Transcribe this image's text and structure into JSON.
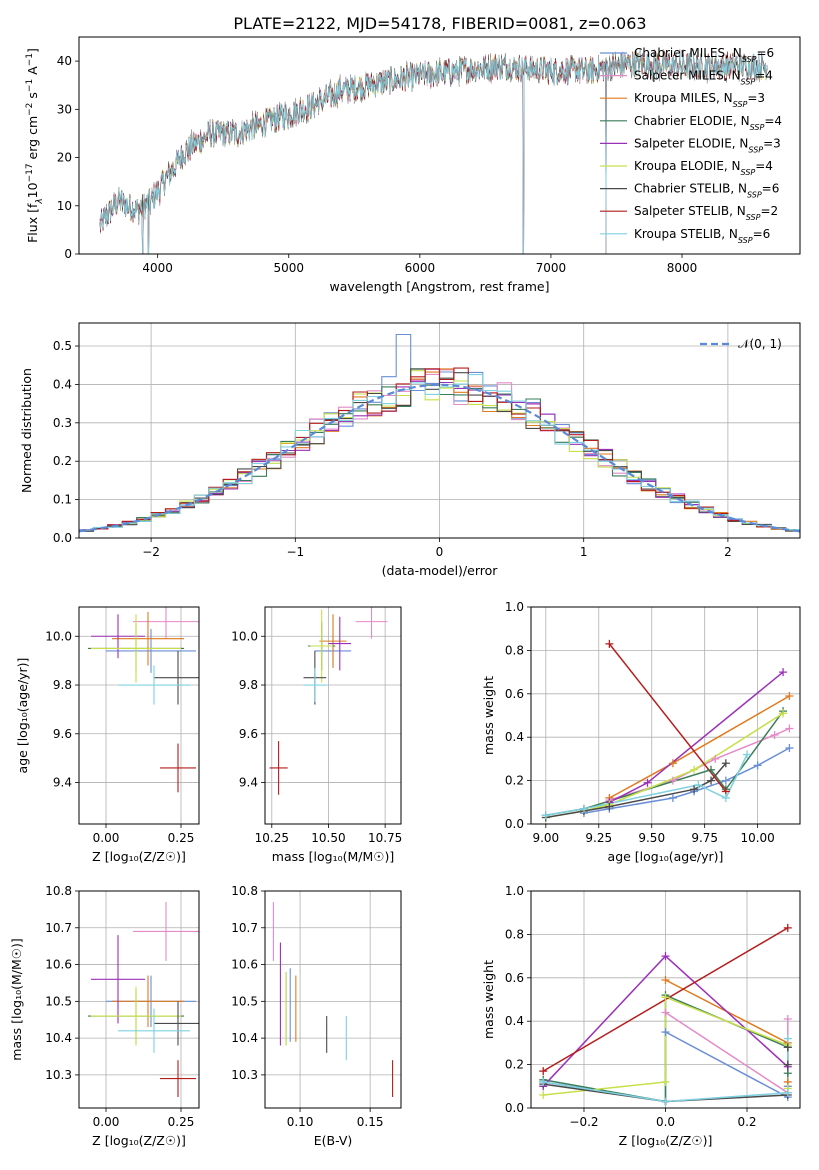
{
  "figure_title": "PLATE=2122, MJD=54178, FIBERID=0081, z=0.063",
  "colors": {
    "Chabrier MILES": "#6a8fd6",
    "Salpeter MILES": "#e48ac9",
    "Kroupa MILES": "#e07a1f",
    "Chabrier ELODIE": "#3a7d5a",
    "Salpeter ELODIE": "#9b30b8",
    "Kroupa ELODIE": "#c7e04a",
    "Chabrier STELIB": "#4a4a4a",
    "Salpeter STELIB": "#b51d1d",
    "Kroupa STELIB": "#7fd0e0"
  },
  "legend_spectrum": [
    {
      "key": "Chabrier MILES",
      "prefix": "Chabrier MILES, N",
      "n": "6"
    },
    {
      "key": "Salpeter MILES",
      "prefix": "Salpeter MILES, N",
      "n": "4"
    },
    {
      "key": "Kroupa MILES",
      "prefix": "Kroupa MILES, N",
      "n": "3"
    },
    {
      "key": "Chabrier ELODIE",
      "prefix": "Chabrier ELODIE, N",
      "n": "4"
    },
    {
      "key": "Salpeter ELODIE",
      "prefix": "Salpeter ELODIE, N",
      "n": "3"
    },
    {
      "key": "Kroupa ELODIE",
      "prefix": "Kroupa ELODIE, N",
      "n": "4"
    },
    {
      "key": "Chabrier STELIB",
      "prefix": "Chabrier STELIB, N",
      "n": "6"
    },
    {
      "key": "Salpeter STELIB",
      "prefix": "Salpeter STELIB, N",
      "n": "2"
    },
    {
      "key": "Kroupa STELIB",
      "prefix": "Kroupa STELIB, N",
      "n": "6"
    }
  ],
  "legend_sub": "SSP",
  "legend_normal": "𝒩(0, 1)",
  "chart_data": [
    {
      "id": "spectrum",
      "type": "line",
      "xlabel": "wavelength [Angstrom, rest frame]",
      "ylabel_parts": [
        "Flux [f",
        "λ",
        "10",
        "−17",
        " erg cm",
        "−2",
        " s",
        "−1",
        " A",
        "−1",
        "]"
      ],
      "xlim": [
        3400,
        8900
      ],
      "ylim": [
        0,
        45
      ],
      "xticks": [
        4000,
        5000,
        6000,
        7000,
        8000
      ],
      "yticks": [
        0,
        10,
        20,
        30,
        40
      ],
      "data_range": [
        3560,
        8650
      ],
      "continuum": [
        [
          3560,
          6
        ],
        [
          3700,
          11
        ],
        [
          3850,
          9
        ],
        [
          3950,
          11
        ],
        [
          4050,
          15
        ],
        [
          4200,
          21
        ],
        [
          4400,
          25
        ],
        [
          4600,
          25
        ],
        [
          4800,
          27
        ],
        [
          5000,
          29
        ],
        [
          5200,
          31
        ],
        [
          5400,
          34
        ],
        [
          5600,
          35
        ],
        [
          5800,
          36
        ],
        [
          6000,
          37
        ],
        [
          6300,
          38
        ],
        [
          6600,
          39
        ],
        [
          7000,
          38
        ],
        [
          7300,
          38
        ],
        [
          7600,
          39.5
        ],
        [
          8000,
          39
        ],
        [
          8300,
          39
        ],
        [
          8650,
          39
        ]
      ],
      "noise_amplitude": 2.5,
      "dips": [
        {
          "x": 3886,
          "to": 0
        },
        {
          "x": 3930,
          "to": 0
        },
        {
          "x": 6790,
          "to": 0
        },
        {
          "x": 7420,
          "to": 0
        }
      ]
    },
    {
      "id": "residuals",
      "type": "histogram",
      "xlabel": "(data-model)/error",
      "ylabel": "Normed distribution",
      "xlim": [
        -2.5,
        2.5
      ],
      "ylim": [
        0,
        0.56
      ],
      "xticks": [
        -2,
        -1,
        0,
        1,
        2
      ],
      "xtick_labels": [
        "−2",
        "−1",
        "0",
        "1",
        "2"
      ],
      "yticks": [
        0.0,
        0.1,
        0.2,
        0.3,
        0.4,
        0.5
      ],
      "ytick_labels": [
        "0.0",
        "0.1",
        "0.2",
        "0.3",
        "0.4",
        "0.5"
      ],
      "bin_width": 0.1,
      "normal_mu": 0,
      "normal_sigma": 1,
      "spike": {
        "model": "Chabrier MILES",
        "x": -0.25,
        "value": 0.53
      }
    },
    {
      "id": "age_vs_Z",
      "type": "errorbar",
      "xlabel": "Z [log₁₀(Z/Z☉)]",
      "ylabel": "age  [log₁₀(age/yr)]",
      "xlim": [
        -0.09,
        0.31
      ],
      "ylim": [
        9.23,
        10.12
      ],
      "xticks": [
        0.0,
        0.25
      ],
      "xtick_labels": [
        "0.00",
        "0.25"
      ],
      "yticks": [
        9.4,
        9.6,
        9.8,
        10.0
      ],
      "ytick_labels": [
        "9.4",
        "9.6",
        "9.8",
        "10.0"
      ],
      "points": [
        {
          "model": "Chabrier MILES",
          "x": 0.15,
          "xerr": 0.15,
          "y": 9.94,
          "yerr": 0.09
        },
        {
          "model": "Salpeter MILES",
          "x": 0.2,
          "xerr": 0.11,
          "y": 10.06,
          "yerr": 0.07
        },
        {
          "model": "Kroupa MILES",
          "x": 0.14,
          "xerr": 0.12,
          "y": 9.99,
          "yerr": 0.11
        },
        {
          "model": "Chabrier ELODIE",
          "x": 0.1,
          "xerr": 0.16,
          "y": 9.95,
          "yerr": 0.1
        },
        {
          "model": "Salpeter ELODIE",
          "x": 0.04,
          "xerr": 0.09,
          "y": 10.0,
          "yerr": 0.09
        },
        {
          "model": "Kroupa ELODIE",
          "x": 0.1,
          "xerr": 0.15,
          "y": 9.95,
          "yerr": 0.14
        },
        {
          "model": "Chabrier STELIB",
          "x": 0.24,
          "xerr": 0.08,
          "y": 9.83,
          "yerr": 0.11
        },
        {
          "model": "Salpeter STELIB",
          "x": 0.24,
          "xerr": 0.06,
          "y": 9.46,
          "yerr": 0.1
        },
        {
          "model": "Kroupa STELIB",
          "x": 0.16,
          "xerr": 0.12,
          "y": 9.8,
          "yerr": 0.08
        }
      ]
    },
    {
      "id": "age_vs_mass",
      "type": "errorbar",
      "xlabel": "mass [log₁₀(M/M☉)]",
      "ylabel": "",
      "xlim": [
        10.22,
        10.82
      ],
      "ylim": [
        9.23,
        10.12
      ],
      "xticks": [
        10.25,
        10.5,
        10.75
      ],
      "xtick_labels": [
        "10.25",
        "10.50",
        "10.75"
      ],
      "yticks": [
        9.4,
        9.6,
        9.8,
        10.0
      ],
      "ytick_labels": [
        "9.4",
        "9.6",
        "9.8",
        "10.0"
      ],
      "points": [
        {
          "model": "Chabrier MILES",
          "x": 10.52,
          "xerr": 0.08,
          "y": 9.94,
          "yerr": 0.06
        },
        {
          "model": "Salpeter MILES",
          "x": 10.69,
          "xerr": 0.07,
          "y": 10.06,
          "yerr": 0.07
        },
        {
          "model": "Kroupa MILES",
          "x": 10.52,
          "xerr": 0.06,
          "y": 9.98,
          "yerr": 0.11
        },
        {
          "model": "Chabrier ELODIE",
          "x": 10.47,
          "xerr": 0.06,
          "y": 9.96,
          "yerr": 0.1
        },
        {
          "model": "Salpeter ELODIE",
          "x": 10.55,
          "xerr": 0.05,
          "y": 9.97,
          "yerr": 0.11
        },
        {
          "model": "Kroupa ELODIE",
          "x": 10.47,
          "xerr": 0.05,
          "y": 9.96,
          "yerr": 0.15
        },
        {
          "model": "Chabrier STELIB",
          "x": 10.44,
          "xerr": 0.05,
          "y": 9.83,
          "yerr": 0.11
        },
        {
          "model": "Salpeter STELIB",
          "x": 10.28,
          "xerr": 0.04,
          "y": 9.46,
          "yerr": 0.11
        },
        {
          "model": "Kroupa STELIB",
          "x": 10.44,
          "xerr": 0.05,
          "y": 9.8,
          "yerr": 0.07
        }
      ]
    },
    {
      "id": "weight_vs_age",
      "type": "line",
      "xlabel": "age  [log₁₀(age/yr)]",
      "ylabel": "mass weight",
      "xlim": [
        8.93,
        10.2
      ],
      "ylim": [
        0,
        1
      ],
      "xticks": [
        9.0,
        9.25,
        9.5,
        9.75,
        10.0
      ],
      "xtick_labels": [
        "9.00",
        "9.25",
        "9.50",
        "9.75",
        "10.00"
      ],
      "yticks": [
        0.0,
        0.2,
        0.4,
        0.6,
        0.8,
        1.0
      ],
      "ytick_labels": [
        "0.0",
        "0.2",
        "0.4",
        "0.6",
        "0.8",
        "1.0"
      ],
      "series": [
        {
          "model": "Chabrier MILES",
          "x": [
            9.18,
            9.3,
            9.6,
            9.7,
            9.85,
            10.0,
            10.15
          ],
          "y": [
            0.05,
            0.07,
            0.12,
            0.15,
            0.2,
            0.27,
            0.35
          ]
        },
        {
          "model": "Salpeter MILES",
          "x": [
            9.3,
            9.6,
            9.8,
            10.08,
            10.15
          ],
          "y": [
            0.11,
            0.2,
            0.3,
            0.41,
            0.44
          ]
        },
        {
          "model": "Kroupa MILES",
          "x": [
            9.3,
            9.6,
            10.15
          ],
          "y": [
            0.12,
            0.28,
            0.59
          ]
        },
        {
          "model": "Chabrier ELODIE",
          "x": [
            9.0,
            9.18,
            9.78,
            9.85,
            10.12
          ],
          "y": [
            0.04,
            0.07,
            0.25,
            0.16,
            0.52
          ]
        },
        {
          "model": "Salpeter ELODIE",
          "x": [
            9.3,
            9.48,
            10.12
          ],
          "y": [
            0.1,
            0.19,
            0.7
          ]
        },
        {
          "model": "Kroupa ELODIE",
          "x": [
            9.0,
            9.18,
            9.3,
            9.7,
            10.12
          ],
          "y": [
            0.03,
            0.06,
            0.09,
            0.25,
            0.51
          ]
        },
        {
          "model": "Chabrier STELIB",
          "x": [
            9.0,
            9.18,
            9.3,
            9.7,
            9.78,
            9.85
          ],
          "y": [
            0.03,
            0.06,
            0.08,
            0.16,
            0.2,
            0.28
          ]
        },
        {
          "model": "Salpeter STELIB",
          "x": [
            9.3,
            9.85
          ],
          "y": [
            0.83,
            0.15
          ]
        },
        {
          "model": "Kroupa STELIB",
          "x": [
            9.0,
            9.18,
            9.72,
            9.85,
            9.95
          ],
          "y": [
            0.04,
            0.07,
            0.18,
            0.12,
            0.32
          ]
        }
      ]
    },
    {
      "id": "mass_vs_Z",
      "type": "errorbar",
      "xlabel": "Z [log₁₀(Z/Z☉)]",
      "ylabel": "mass [log₁₀(M/M☉)]",
      "xlim": [
        -0.09,
        0.31
      ],
      "ylim": [
        10.21,
        10.8
      ],
      "xticks": [
        0.0,
        0.25
      ],
      "xtick_labels": [
        "0.00",
        "0.25"
      ],
      "yticks": [
        10.3,
        10.4,
        10.5,
        10.6,
        10.7,
        10.8
      ],
      "ytick_labels": [
        "10.3",
        "10.4",
        "10.5",
        "10.6",
        "10.7",
        "10.8"
      ],
      "points": [
        {
          "model": "Chabrier MILES",
          "x": 0.15,
          "xerr": 0.15,
          "y": 10.5,
          "yerr": 0.07
        },
        {
          "model": "Salpeter MILES",
          "x": 0.2,
          "xerr": 0.11,
          "y": 10.69,
          "yerr": 0.08
        },
        {
          "model": "Kroupa MILES",
          "x": 0.14,
          "xerr": 0.12,
          "y": 10.5,
          "yerr": 0.07
        },
        {
          "model": "Chabrier ELODIE",
          "x": 0.1,
          "xerr": 0.16,
          "y": 10.46,
          "yerr": 0.07
        },
        {
          "model": "Salpeter ELODIE",
          "x": 0.04,
          "xerr": 0.09,
          "y": 10.56,
          "yerr": 0.12
        },
        {
          "model": "Kroupa ELODIE",
          "x": 0.1,
          "xerr": 0.15,
          "y": 10.46,
          "yerr": 0.08
        },
        {
          "model": "Chabrier STELIB",
          "x": 0.24,
          "xerr": 0.08,
          "y": 10.44,
          "yerr": 0.06
        },
        {
          "model": "Salpeter STELIB",
          "x": 0.24,
          "xerr": 0.06,
          "y": 10.29,
          "yerr": 0.05
        },
        {
          "model": "Kroupa STELIB",
          "x": 0.16,
          "xerr": 0.12,
          "y": 10.42,
          "yerr": 0.06
        }
      ]
    },
    {
      "id": "mass_vs_ebv",
      "type": "errorbar",
      "xlabel": "E(B-V)",
      "ylabel": "",
      "xlim": [
        0.075,
        0.172
      ],
      "ylim": [
        10.21,
        10.8
      ],
      "xticks": [
        0.1,
        0.15
      ],
      "xtick_labels": [
        "0.10",
        "0.15"
      ],
      "yticks": [
        10.3,
        10.4,
        10.5,
        10.6,
        10.7,
        10.8
      ],
      "ytick_labels": [
        "10.3",
        "10.4",
        "10.5",
        "10.6",
        "10.7",
        "10.8"
      ],
      "points": [
        {
          "model": "Chabrier MILES",
          "x": 0.093,
          "xerr": 0,
          "y": 10.49,
          "yerr": 0.1
        },
        {
          "model": "Salpeter MILES",
          "x": 0.081,
          "xerr": 0,
          "y": 10.69,
          "yerr": 0.08
        },
        {
          "model": "Kroupa MILES",
          "x": 0.097,
          "xerr": 0,
          "y": 10.48,
          "yerr": 0.09
        },
        {
          "model": "Chabrier ELODIE",
          "x": 0.09,
          "xerr": 0,
          "y": 10.48,
          "yerr": 0.1
        },
        {
          "model": "Salpeter ELODIE",
          "x": 0.086,
          "xerr": 0,
          "y": 10.52,
          "yerr": 0.14
        },
        {
          "model": "Kroupa ELODIE",
          "x": 0.09,
          "xerr": 0,
          "y": 10.48,
          "yerr": 0.1
        },
        {
          "model": "Chabrier STELIB",
          "x": 0.119,
          "xerr": 0,
          "y": 10.41,
          "yerr": 0.05
        },
        {
          "model": "Salpeter STELIB",
          "x": 0.166,
          "xerr": 0,
          "y": 10.29,
          "yerr": 0.05
        },
        {
          "model": "Kroupa STELIB",
          "x": 0.133,
          "xerr": 0,
          "y": 10.4,
          "yerr": 0.06
        }
      ]
    },
    {
      "id": "weight_vs_Z",
      "type": "line",
      "xlabel": "Z [log₁₀(Z/Z☉)]",
      "ylabel": "mass weight",
      "xlim": [
        -0.33,
        0.33
      ],
      "ylim": [
        0,
        1
      ],
      "xticks": [
        -0.2,
        0.0,
        0.2
      ],
      "xtick_labels": [
        "−0.2",
        "0.0",
        "0.2"
      ],
      "yticks": [
        0.0,
        0.2,
        0.4,
        0.6,
        0.8,
        1.0
      ],
      "ytick_labels": [
        "0.0",
        "0.2",
        "0.4",
        "0.6",
        "0.8",
        "1.0"
      ],
      "series": [
        {
          "model": "Chabrier MILES",
          "x": [
            -0.3,
            0.0,
            0.0,
            0.3,
            0.3
          ],
          "y": [
            0.12,
            0.03,
            0.35,
            0.05,
            0.1
          ]
        },
        {
          "model": "Salpeter MILES",
          "x": [
            0.0,
            0.3,
            0.3
          ],
          "y": [
            0.44,
            0.07,
            0.41
          ]
        },
        {
          "model": "Kroupa MILES",
          "x": [
            0.0,
            0.3,
            0.3
          ],
          "y": [
            0.59,
            0.3,
            0.12
          ]
        },
        {
          "model": "Chabrier ELODIE",
          "x": [
            -0.3,
            0.0,
            0.0,
            0.3,
            0.3
          ],
          "y": [
            0.13,
            0.03,
            0.52,
            0.28,
            0.16
          ]
        },
        {
          "model": "Salpeter ELODIE",
          "x": [
            -0.3,
            0.0,
            0.3
          ],
          "y": [
            0.1,
            0.7,
            0.19
          ]
        },
        {
          "model": "Kroupa ELODIE",
          "x": [
            -0.3,
            0.0,
            0.0,
            0.3,
            0.3
          ],
          "y": [
            0.06,
            0.12,
            0.51,
            0.29,
            0.09
          ]
        },
        {
          "model": "Chabrier STELIB",
          "x": [
            -0.3,
            0.0,
            0.3,
            0.3,
            0.3
          ],
          "y": [
            0.11,
            0.03,
            0.06,
            0.28,
            0.2
          ]
        },
        {
          "model": "Salpeter STELIB",
          "x": [
            -0.3,
            0.3
          ],
          "y": [
            0.17,
            0.83
          ]
        },
        {
          "model": "Kroupa STELIB",
          "x": [
            -0.3,
            0.0,
            0.3,
            0.3
          ],
          "y": [
            0.12,
            0.03,
            0.07,
            0.32
          ]
        }
      ]
    }
  ]
}
